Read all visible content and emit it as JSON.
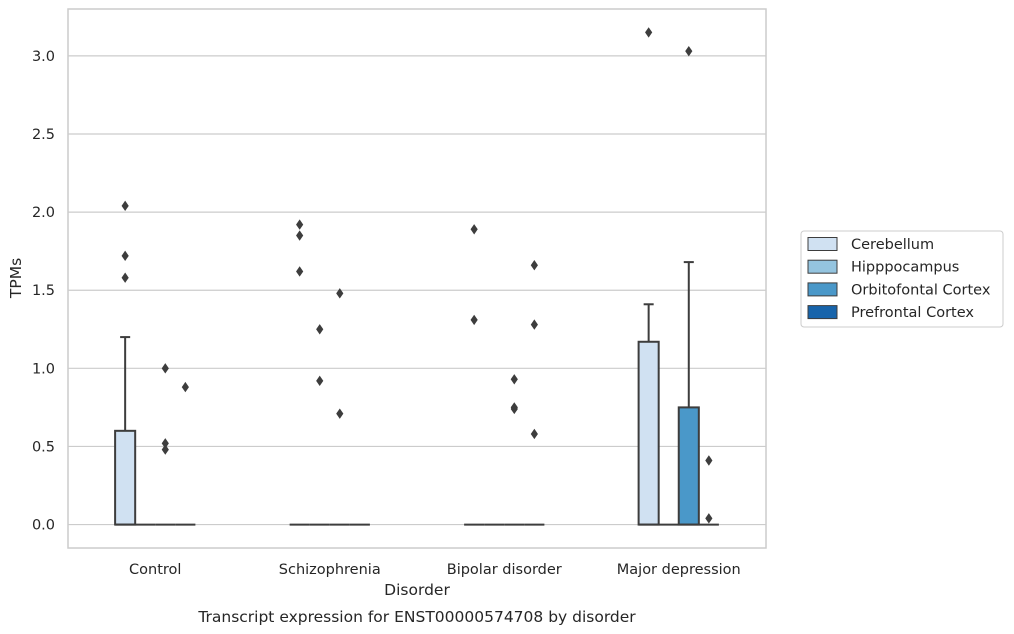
{
  "chart_data": {
    "type": "box",
    "caption": "Transcript expression for ENST00000574708 by disorder",
    "xlabel": "Disorder",
    "ylabel": "TPMs",
    "ylim": [
      -0.15,
      3.3
    ],
    "yticks": [
      "0.0",
      "0.5",
      "1.0",
      "1.5",
      "2.0",
      "2.5",
      "3.0"
    ],
    "grid": true,
    "legend_position": "right",
    "categories": [
      "Control",
      "Schizophrenia",
      "Bipolar disorder",
      "Major depression"
    ],
    "series": [
      {
        "name": "Cerebellum",
        "color": "#d0e1f2",
        "boxes": [
          {
            "q1": 0,
            "median": 0,
            "q3": 0.6,
            "whisker_low": 0,
            "whisker_high": 1.2,
            "outliers": [
              1.58,
              1.72,
              2.04
            ]
          },
          {
            "q1": 0,
            "median": 0,
            "q3": 0,
            "whisker_low": 0,
            "whisker_high": 0,
            "outliers": [
              1.62,
              1.85,
              1.92
            ]
          },
          {
            "q1": 0,
            "median": 0,
            "q3": 0,
            "whisker_low": 0,
            "whisker_high": 0,
            "outliers": [
              1.31,
              1.89
            ]
          },
          {
            "q1": 0,
            "median": 0,
            "q3": 1.17,
            "whisker_low": 0,
            "whisker_high": 1.41,
            "outliers": [
              3.15
            ]
          }
        ]
      },
      {
        "name": "Hipppocampus",
        "color": "#94c4df",
        "boxes": [
          {
            "q1": 0,
            "median": 0,
            "q3": 0,
            "whisker_low": 0,
            "whisker_high": 0,
            "outliers": []
          },
          {
            "q1": 0,
            "median": 0,
            "q3": 0,
            "whisker_low": 0,
            "whisker_high": 0,
            "outliers": [
              0.92,
              1.25
            ]
          },
          {
            "q1": 0,
            "median": 0,
            "q3": 0,
            "whisker_low": 0,
            "whisker_high": 0,
            "outliers": []
          },
          {
            "q1": 0,
            "median": 0,
            "q3": 0,
            "whisker_low": 0,
            "whisker_high": 0,
            "outliers": []
          }
        ]
      },
      {
        "name": "Orbitofontal Cortex",
        "color": "#4a98c9",
        "boxes": [
          {
            "q1": 0,
            "median": 0,
            "q3": 0,
            "whisker_low": 0,
            "whisker_high": 0,
            "outliers": [
              0.48,
              0.52,
              1.0
            ]
          },
          {
            "q1": 0,
            "median": 0,
            "q3": 0,
            "whisker_low": 0,
            "whisker_high": 0,
            "outliers": [
              0.71,
              1.48
            ]
          },
          {
            "q1": 0,
            "median": 0,
            "q3": 0,
            "whisker_low": 0,
            "whisker_high": 0,
            "outliers": [
              0.74,
              0.75,
              0.93
            ]
          },
          {
            "q1": 0,
            "median": 0,
            "q3": 0.75,
            "whisker_low": 0,
            "whisker_high": 1.68,
            "outliers": [
              3.03
            ]
          }
        ]
      },
      {
        "name": "Prefrontal Cortex",
        "color": "#1764ab",
        "boxes": [
          {
            "q1": 0,
            "median": 0,
            "q3": 0,
            "whisker_low": 0,
            "whisker_high": 0,
            "outliers": [
              0.88
            ]
          },
          {
            "q1": 0,
            "median": 0,
            "q3": 0,
            "whisker_low": 0,
            "whisker_high": 0,
            "outliers": []
          },
          {
            "q1": 0,
            "median": 0,
            "q3": 0,
            "whisker_low": 0,
            "whisker_high": 0,
            "outliers": [
              0.58,
              1.28,
              1.66
            ]
          },
          {
            "q1": 0,
            "median": 0,
            "q3": 0,
            "whisker_low": 0,
            "whisker_high": 0,
            "outliers": [
              0.04,
              0.41
            ]
          }
        ]
      }
    ]
  }
}
